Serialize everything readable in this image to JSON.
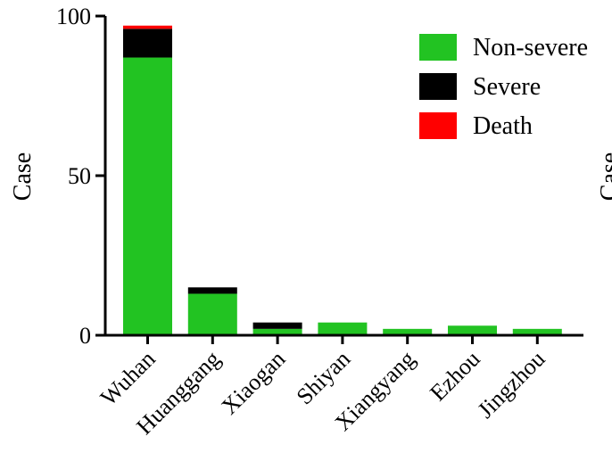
{
  "chart_data": {
    "type": "bar",
    "stacked": true,
    "categories": [
      "Wuhan",
      "Huanggang",
      "Xiaogan",
      "Shiyan",
      "Xiangyang",
      "Ezhou",
      "Jingzhou"
    ],
    "series": [
      {
        "name": "Non-severe",
        "color": "#22c322",
        "values": [
          87,
          13,
          2,
          4,
          2,
          3,
          2
        ]
      },
      {
        "name": "Severe",
        "color": "#000000",
        "values": [
          9,
          2,
          2,
          0,
          0,
          0,
          0
        ]
      },
      {
        "name": "Death",
        "color": "#ff0000",
        "values": [
          1,
          0,
          0,
          0,
          0,
          0,
          0
        ]
      }
    ],
    "ylabel": "Case",
    "ylim": [
      0,
      100
    ],
    "yticks": [
      0,
      50,
      100
    ],
    "grid": false,
    "legend_position": "top-right",
    "partial_next_panel_label": "Case"
  }
}
